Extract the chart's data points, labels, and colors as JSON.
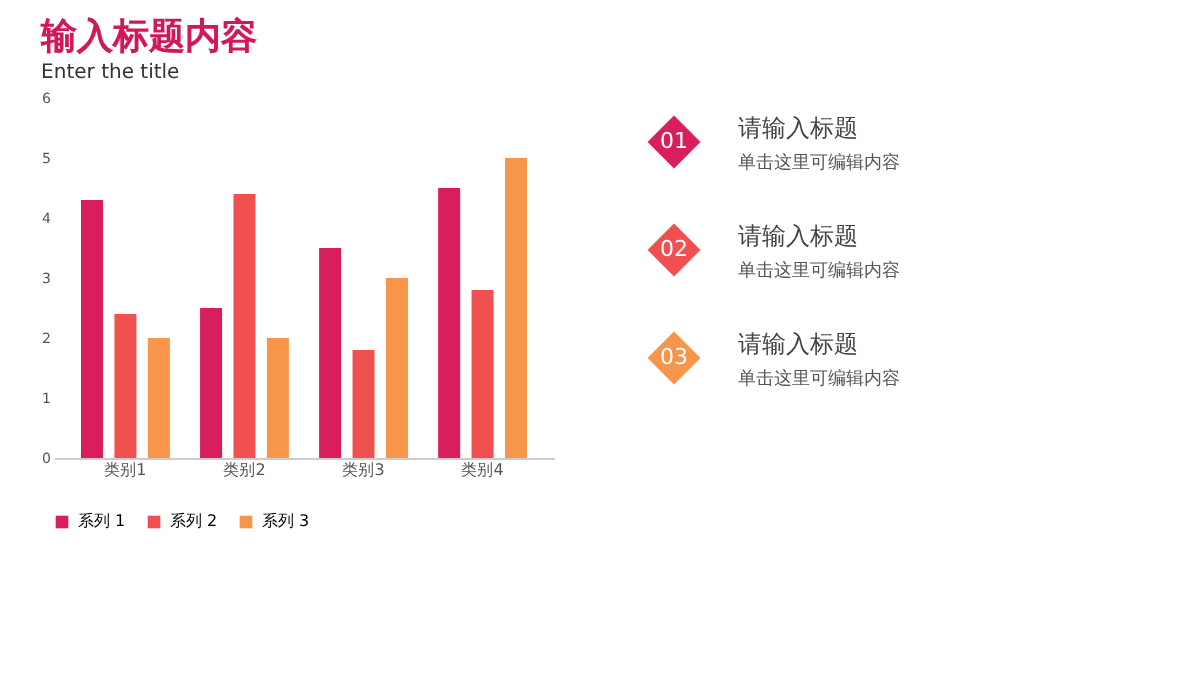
{
  "chart_data": {
    "type": "bar",
    "title": "输入标题内容",
    "subtitle": "Enter the title",
    "categories": [
      "类别1",
      "类别2",
      "类别3",
      "类别4"
    ],
    "series": [
      {
        "name": "系列 1",
        "color": "#d81e5b",
        "values": [
          4.3,
          2.5,
          3.5,
          4.5
        ]
      },
      {
        "name": "系列 2",
        "color": "#f0504f",
        "values": [
          2.4,
          4.4,
          1.8,
          2.8
        ]
      },
      {
        "name": "系列 3",
        "color": "#f7964a",
        "values": [
          2,
          2,
          3,
          5
        ]
      }
    ],
    "ylim": [
      0,
      6
    ],
    "yticks": [
      0,
      1,
      2,
      3,
      4,
      5,
      6
    ],
    "grid": false,
    "legend": "bottom",
    "annotations": [
      "01",
      "请输入标题",
      "单击这里可编辑内容",
      "02",
      "请输入标题",
      "单击这里可编辑内容",
      "03",
      "请输入标题",
      "单击这里可编辑内容"
    ]
  }
}
